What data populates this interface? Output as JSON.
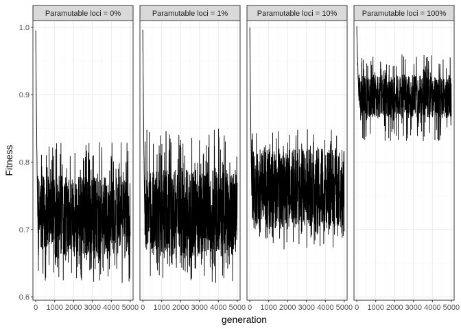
{
  "chart_data": {
    "type": "line",
    "xlabel": "generation",
    "ylabel": "Fitness",
    "xlim": [
      -150,
      5150
    ],
    "ylim": [
      0.595,
      1.01
    ],
    "x_ticks": [
      0,
      1000,
      2000,
      3000,
      4000,
      5000
    ],
    "x_tick_labels": [
      "0",
      "1000",
      "2000",
      "3000",
      "4000",
      "5000"
    ],
    "y_ticks": [
      0.6,
      0.7,
      0.8,
      0.9,
      1.0
    ],
    "y_tick_labels": [
      "0.6",
      "0.7",
      "0.8",
      "0.9",
      "1.0"
    ],
    "grid": true,
    "line_color": "#000000",
    "panels": [
      {
        "strip": "Paramutable loci = 0%",
        "start": 1.0,
        "decay_end_generation": 100,
        "band_center": 0.72,
        "band_low": 0.66,
        "band_high": 0.78,
        "envelope_low": 0.62,
        "envelope_high": 0.83
      },
      {
        "strip": "Paramutable loci = 1%",
        "start": 1.0,
        "decay_end_generation": 100,
        "band_center": 0.725,
        "band_low": 0.66,
        "band_high": 0.79,
        "envelope_low": 0.62,
        "envelope_high": 0.85
      },
      {
        "strip": "Paramutable loci = 10%",
        "start": 1.0,
        "decay_end_generation": 100,
        "band_center": 0.755,
        "band_low": 0.7,
        "band_high": 0.82,
        "envelope_low": 0.67,
        "envelope_high": 0.85
      },
      {
        "strip": "Paramutable loci = 100%",
        "start": 1.0,
        "decay_end_generation": 100,
        "band_center": 0.9,
        "band_low": 0.865,
        "band_high": 0.93,
        "envelope_low": 0.83,
        "envelope_high": 0.96
      }
    ]
  }
}
